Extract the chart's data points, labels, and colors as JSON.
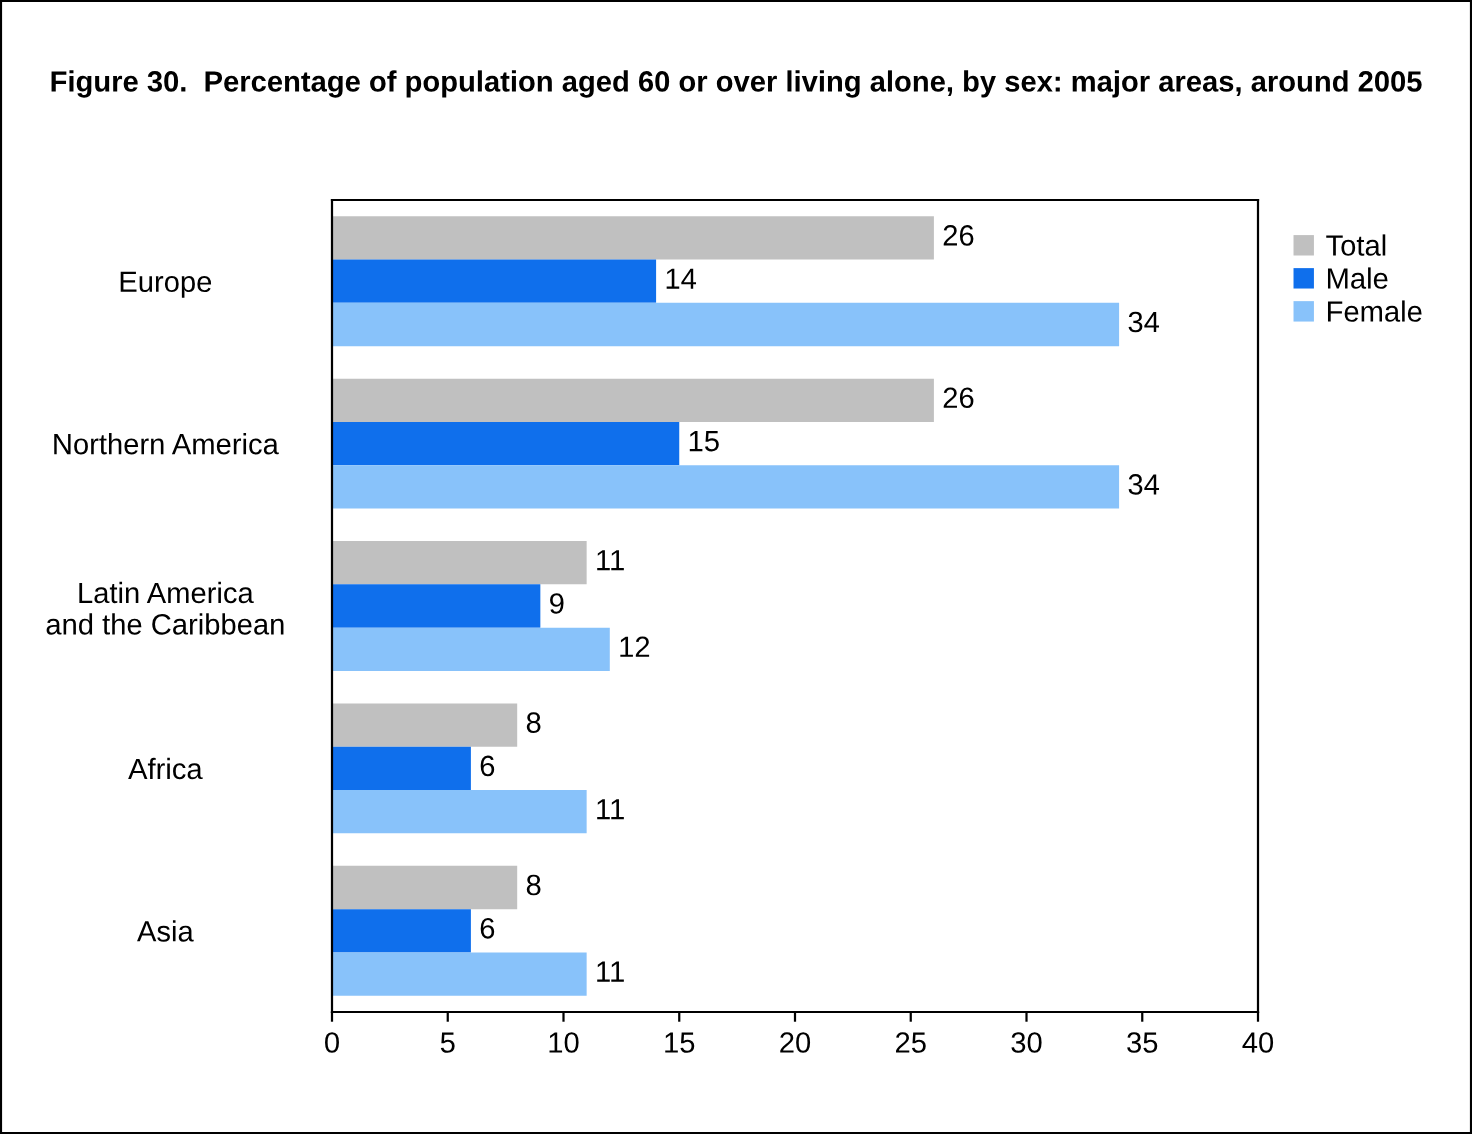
{
  "chart_data": {
    "type": "bar",
    "orientation": "horizontal",
    "title": "Figure 30.  Percentage of population aged 60 or over living alone, by sex: major areas, around 2005",
    "categories": [
      "Europe",
      "Northern America",
      "Latin America\nand the Caribbean",
      "Africa",
      "Asia"
    ],
    "series": [
      {
        "name": "Total",
        "color": "#c0c0c0",
        "values": [
          26,
          26,
          11,
          8,
          8
        ]
      },
      {
        "name": "Male",
        "color": "#0f6fec",
        "values": [
          14,
          15,
          9,
          6,
          6
        ]
      },
      {
        "name": "Female",
        "color": "#88c2fa",
        "values": [
          34,
          34,
          12,
          11,
          11
        ]
      }
    ],
    "xlim": [
      0,
      40
    ],
    "xticks": [
      0,
      5,
      10,
      15,
      20,
      25,
      30,
      35,
      40
    ],
    "data_labels": true,
    "legend": "right",
    "grid": false
  }
}
